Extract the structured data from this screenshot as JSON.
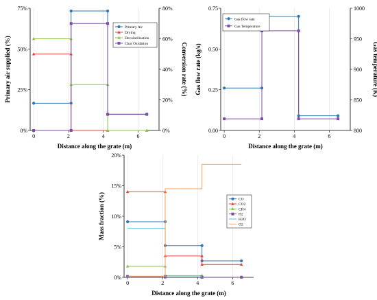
{
  "chart_data": [
    {
      "type": "line",
      "step": true,
      "xlabel": "Distance along the grate (m)",
      "ylabel": "Primary air supplied (%)",
      "y2label": "Conversion rate (%)",
      "xlim": [
        -0.2,
        7.2
      ],
      "ylim": [
        0,
        75
      ],
      "y2lim": [
        0,
        80
      ],
      "xticks": [
        0,
        2,
        4,
        6
      ],
      "yticks": [
        0,
        25,
        50,
        75
      ],
      "y2ticks": [
        0,
        20,
        40,
        60,
        80
      ],
      "xtick_labels": [
        "0",
        "2",
        "4",
        "6"
      ],
      "ytick_labels": [
        "0%",
        "25%",
        "50%",
        "75%"
      ],
      "y2tick_labels": [
        "0%",
        "20%",
        "40%",
        "60%",
        "80%"
      ],
      "legend_position": "top-right",
      "grid": true,
      "series": [
        {
          "name": "Primary Air",
          "color": "#2e75b6",
          "marker": "circle",
          "axis": "left",
          "x": [
            0,
            2.15,
            2.15,
            4.25,
            4.25,
            6.5
          ],
          "y": [
            16.7,
            16.7,
            73.3,
            73.3,
            10,
            10
          ]
        },
        {
          "name": "Drying",
          "color": "#e0443e",
          "marker": "triangle",
          "axis": "right",
          "x": [
            0,
            2.15,
            2.15,
            4.25,
            4.25,
            6.5
          ],
          "y": [
            50,
            50,
            0,
            0,
            0,
            0
          ]
        },
        {
          "name": "Devolatilization",
          "color": "#8bc34a",
          "marker": "triangle",
          "axis": "right",
          "x": [
            0,
            2.15,
            2.15,
            4.25,
            4.25,
            6.5
          ],
          "y": [
            60,
            60,
            30,
            30,
            0,
            0
          ]
        },
        {
          "name": "Char Oxidation",
          "color": "#7b4ea3",
          "marker": "square",
          "axis": "right",
          "x": [
            0,
            2.15,
            2.15,
            4.25,
            4.25,
            6.5
          ],
          "y": [
            0,
            0,
            70,
            70,
            10.5,
            10.5
          ]
        }
      ]
    },
    {
      "type": "line",
      "step": true,
      "xlabel": "Distance along the grate (m)",
      "ylabel": "Gas flow rate (kg/s)",
      "y2label": "Gas temperature (K)",
      "xlim": [
        -0.2,
        7.2
      ],
      "ylim": [
        0,
        0.75
      ],
      "y2lim": [
        800,
        1000
      ],
      "xticks": [
        0,
        2,
        4,
        6
      ],
      "yticks": [
        0,
        0.25,
        0.5,
        0.75
      ],
      "y2ticks": [
        800,
        850,
        900,
        950,
        1000
      ],
      "xtick_labels": [
        "0",
        "2",
        "4",
        "6"
      ],
      "ytick_labels": [
        "0.00",
        "0.25",
        "0.50",
        "0.75"
      ],
      "y2tick_labels": [
        "800",
        "850",
        "900",
        "950",
        "1000"
      ],
      "legend_position": "top-left",
      "grid": true,
      "series": [
        {
          "name": "Gas flow rate",
          "color": "#2e75b6",
          "marker": "circle",
          "axis": "left",
          "x": [
            0,
            2.15,
            2.15,
            4.25,
            4.25,
            6.5
          ],
          "y": [
            0.26,
            0.26,
            0.7,
            0.7,
            0.09,
            0.09
          ]
        },
        {
          "name": "Gas Temperature",
          "color": "#7b4ea3",
          "marker": "square",
          "axis": "right",
          "x": [
            0,
            2.15,
            2.15,
            4.25,
            4.25,
            6.5
          ],
          "y": [
            819,
            819,
            963,
            963,
            819,
            819
          ]
        }
      ]
    },
    {
      "type": "line",
      "step": true,
      "xlabel": "Distance along the grate (m)",
      "ylabel": "Mass fraction (%)",
      "xlim": [
        -0.2,
        7.2
      ],
      "ylim": [
        0,
        20
      ],
      "xticks": [
        0,
        2,
        4,
        6
      ],
      "yticks": [
        0,
        5,
        10,
        15,
        20
      ],
      "xtick_labels": [
        "0",
        "2",
        "4",
        "6"
      ],
      "ytick_labels": [
        "0%",
        "5%",
        "10%",
        "15%",
        "20%"
      ],
      "legend_position": "center-right",
      "grid": true,
      "series": [
        {
          "name": "CO",
          "color": "#2e75b6",
          "marker": "circle",
          "x": [
            0,
            2.15,
            2.15,
            4.25,
            4.25,
            6.5
          ],
          "y": [
            9.1,
            9.1,
            5.2,
            5.2,
            2.7,
            2.7
          ]
        },
        {
          "name": "CO2",
          "color": "#e0443e",
          "marker": "triangle",
          "x": [
            0,
            2.15,
            2.15,
            4.25,
            4.25,
            6.5
          ],
          "y": [
            14,
            14,
            3.5,
            3.5,
            2.1,
            2.1
          ]
        },
        {
          "name": "CH4",
          "color": "#8bc34a",
          "marker": "triangle",
          "x": [
            0,
            2.15,
            2.15,
            4.25,
            4.25,
            6.5
          ],
          "y": [
            1.8,
            1.8,
            0.3,
            0.3,
            0.05,
            0.05
          ]
        },
        {
          "name": "H2",
          "color": "#7b4ea3",
          "marker": "square",
          "x": [
            0,
            2.15,
            2.15,
            4.25,
            4.25,
            6.5
          ],
          "y": [
            0.15,
            0.15,
            0.05,
            0.05,
            0.02,
            0.02
          ]
        },
        {
          "name": "H2O",
          "color": "#4fc1d6",
          "marker": "none",
          "x": [
            0,
            2.15,
            2.15,
            4.25,
            4.25,
            6.5
          ],
          "y": [
            8.0,
            8.0,
            0.1,
            0.1,
            0.05,
            0.05
          ]
        },
        {
          "name": "O2",
          "color": "#f4a460",
          "marker": "none",
          "x": [
            0,
            2.15,
            2.15,
            4.25,
            4.25,
            6.5
          ],
          "y": [
            0.2,
            0.2,
            14.5,
            14.5,
            18.5,
            18.5
          ]
        }
      ]
    }
  ]
}
